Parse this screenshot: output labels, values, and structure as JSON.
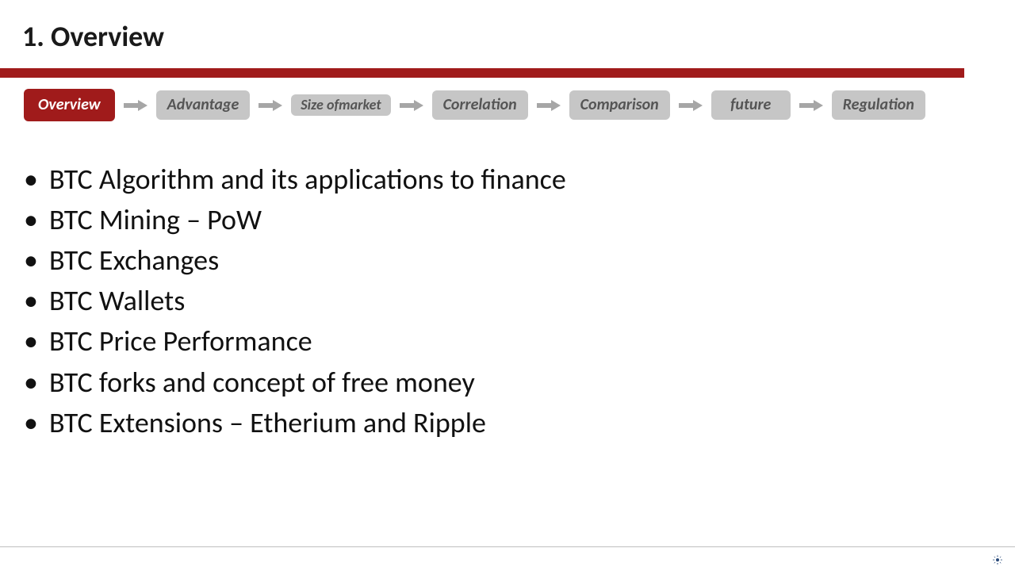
{
  "title": "1. Overview",
  "accent_color": "#a01b1b",
  "chip_inactive_bg": "#c6c6c6",
  "chip_inactive_text": "#555555",
  "chip_active_text": "#ffffff",
  "arrow_color": "#a6a6a6",
  "background_color": "#ffffff",
  "title_fontsize": 36,
  "nav": [
    {
      "label": "Overview",
      "active": true,
      "two_line": false
    },
    {
      "label": "Advantage",
      "active": false,
      "two_line": false
    },
    {
      "label": "Size of\nmarket",
      "active": false,
      "two_line": true
    },
    {
      "label": "Correlation",
      "active": false,
      "two_line": false
    },
    {
      "label": "Comparison",
      "active": false,
      "two_line": false
    },
    {
      "label": "future",
      "active": false,
      "two_line": false
    },
    {
      "label": "Regulation",
      "active": false,
      "two_line": false
    }
  ],
  "bullets": [
    "BTC Algorithm and its applications to finance",
    "BTC Mining – PoW",
    "BTC Exchanges",
    "BTC Wallets",
    "BTC Price Performance",
    "BTC forks and concept of free money",
    "BTC Extensions – Etherium and Ripple"
  ],
  "bullet_fontsize": 36,
  "bullet_color": "#111111",
  "footer_logo_color": "#2a4a7a"
}
